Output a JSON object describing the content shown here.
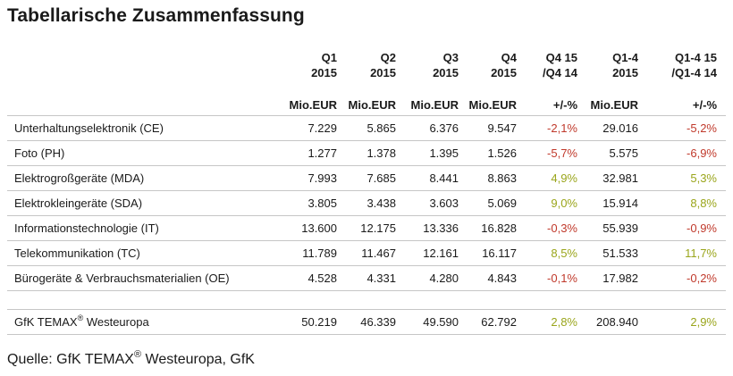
{
  "title": "Tabellarische Zusammenfassung",
  "columns": [
    {
      "header": "Q1\n2015",
      "unit": "Mio.EUR"
    },
    {
      "header": "Q2\n2015",
      "unit": "Mio.EUR"
    },
    {
      "header": "Q3\n2015",
      "unit": "Mio.EUR"
    },
    {
      "header": "Q4\n2015",
      "unit": "Mio.EUR"
    },
    {
      "header": "Q4 15\n/Q4 14",
      "unit": "+/-%"
    },
    {
      "header": "Q1-4\n2015",
      "unit": "Mio.EUR"
    },
    {
      "header": "Q1-4 15\n/Q1-4 14",
      "unit": "+/-%"
    }
  ],
  "rows": [
    {
      "label": "Unterhaltungselektronik (CE)",
      "values": [
        "7.229",
        "5.865",
        "6.376",
        "9.547",
        "-2,1%",
        "29.016",
        "-5,2%"
      ]
    },
    {
      "label": "Foto (PH)",
      "values": [
        "1.277",
        "1.378",
        "1.395",
        "1.526",
        "-5,7%",
        "5.575",
        "-6,9%"
      ]
    },
    {
      "label": "Elektrogroßgeräte (MDA)",
      "values": [
        "7.993",
        "7.685",
        "8.441",
        "8.863",
        "4,9%",
        "32.981",
        "5,3%"
      ]
    },
    {
      "label": "Elektrokleingeräte (SDA)",
      "values": [
        "3.805",
        "3.438",
        "3.603",
        "5.069",
        "9,0%",
        "15.914",
        "8,8%"
      ]
    },
    {
      "label": "Informationstechnologie (IT)",
      "values": [
        "13.600",
        "12.175",
        "13.336",
        "16.828",
        "-0,3%",
        "55.939",
        "-0,9%"
      ]
    },
    {
      "label": "Telekommunikation (TC)",
      "values": [
        "11.789",
        "11.467",
        "12.161",
        "16.117",
        "8,5%",
        "51.533",
        "11,7%"
      ]
    },
    {
      "label": "Bürogeräte & Verbrauchsmaterialien (OE)",
      "values": [
        "4.528",
        "4.331",
        "4.280",
        "4.843",
        "-0,1%",
        "17.982",
        "-0,2%"
      ]
    }
  ],
  "total": {
    "label_main": "GfK TEMAX",
    "label_reg": "®",
    "label_rest": " Westeuropa",
    "values": [
      "50.219",
      "46.339",
      "49.590",
      "62.792",
      "2,8%",
      "208.940",
      "2,9%"
    ]
  },
  "source": {
    "prefix": "Quelle: GfK TEMAX",
    "reg": "®",
    "suffix": " Westeuropa, GfK"
  },
  "colors": {
    "negative": "#c0392b",
    "positive": "#9aa51b",
    "grid": "#c6c6c6"
  }
}
